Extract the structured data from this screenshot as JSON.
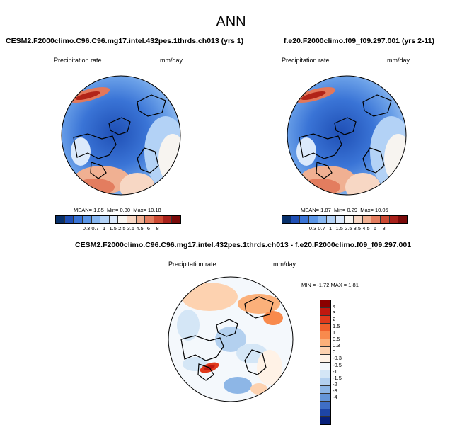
{
  "title": "ANN",
  "panels": [
    {
      "title": "CESM2.F2000climo.C96.C96.mg17.intel.432pes.1thrds.ch013 (yrs 1)",
      "variable": "Precipitation rate",
      "units": "mm/day",
      "stats": {
        "mean_label": "MEAN=",
        "mean": "1.85",
        "min_label": "Min=",
        "min": "0.30",
        "max_label": "Max=",
        "max": "10.18"
      }
    },
    {
      "title": "f.e20.F2000climo.f09_f09.297.001 (yrs 2-11)",
      "variable": "Precipitation rate",
      "units": "mm/day",
      "stats": {
        "mean_label": "MEAN=",
        "mean": "1.87",
        "min_label": "Min=",
        "min": "0.29",
        "max_label": "Max=",
        "max": "10.05"
      }
    }
  ],
  "diff_panel": {
    "title": "CESM2.F2000climo.C96.C96.mg17.intel.432pes.1thrds.ch013 - f.e20.F2000climo.f09_f09.297.001",
    "variable": "Precipitation rate",
    "units": "mm/day",
    "minmax_text": "MIN = -1.72 MAX = 1.81"
  },
  "colorbar_top": {
    "labels": [
      "0.3",
      "0.7",
      "1",
      "1.5",
      "2.5",
      "3.5",
      "4.5",
      "6",
      "8"
    ],
    "colors": [
      "#08306b",
      "#1f4fb5",
      "#3a74d6",
      "#5a95e6",
      "#86b6f0",
      "#b3d2f6",
      "#dbe9fb",
      "#f7f4f0",
      "#f7d7c4",
      "#f0b092",
      "#e37d5f",
      "#cc4a33",
      "#a8201a",
      "#7a0a0a"
    ]
  },
  "colorbar_diff": {
    "labels": [
      "4",
      "3",
      "2",
      "1.5",
      "1",
      "0.5",
      "0.3",
      "0",
      "-0.3",
      "-0.5",
      "-1",
      "-1.5",
      "-2",
      "-3",
      "-4"
    ],
    "colors": [
      "#8b0000",
      "#c0180f",
      "#e03a1c",
      "#f0602c",
      "#f88a4d",
      "#fbb07a",
      "#fdd2b0",
      "#fff2e6",
      "#f4f8fc",
      "#d4e6f6",
      "#b3d0ef",
      "#8db6e6",
      "#6495d8",
      "#3f6ec5",
      "#1d45a6",
      "#07207a"
    ]
  }
}
